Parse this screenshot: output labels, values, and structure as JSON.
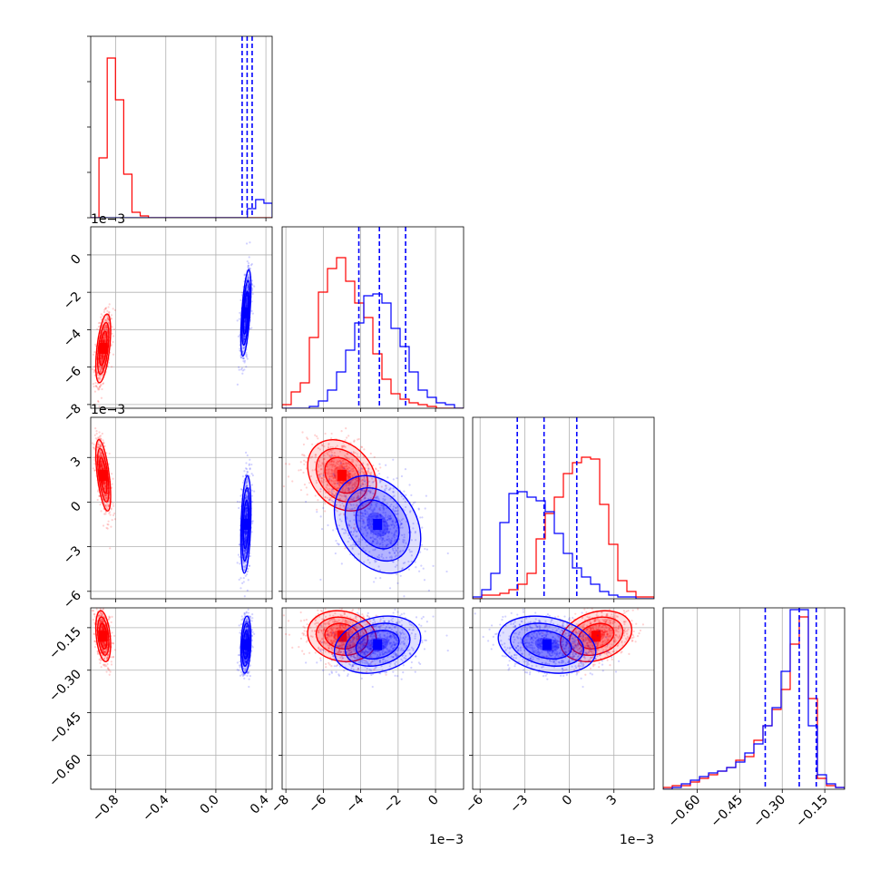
{
  "chart_data": {
    "type": "corner",
    "colors": {
      "red": "#ff0000",
      "blue": "#0000ff",
      "grid": "#b0b0b0",
      "axis": "#000000"
    },
    "params": [
      {
        "range": [
          -1.0,
          0.45
        ],
        "ticks": [
          -0.8,
          -0.4,
          0.0,
          0.4
        ],
        "tick_labels": [
          "−0.8",
          "−0.4",
          "0.0",
          "0.4"
        ],
        "offset": ""
      },
      {
        "range": [
          -0.0082,
          0.0015
        ],
        "ticks": [
          -0.008,
          -0.006,
          -0.004,
          -0.002,
          0.0
        ],
        "tick_labels": [
          "−8",
          "−6",
          "−4",
          "−2",
          "0"
        ],
        "offset": "1e−3"
      },
      {
        "range": [
          -0.0065,
          0.0057
        ],
        "ticks": [
          -0.006,
          -0.003,
          0.0,
          0.003
        ],
        "tick_labels": [
          "−6",
          "−3",
          "0",
          "3"
        ],
        "offset": "1e−3"
      },
      {
        "range": [
          -0.72,
          -0.08
        ],
        "ticks": [
          -0.6,
          -0.45,
          -0.3,
          -0.15
        ],
        "tick_labels": [
          "−0.60",
          "−0.45",
          "−0.30",
          "−0.15"
        ],
        "offset": ""
      }
    ],
    "series": [
      {
        "color": "red",
        "mean": [
          -0.9,
          -0.005,
          0.0018,
          -0.18
        ],
        "sd": [
          0.03,
          0.0009,
          0.0012,
          0.045
        ],
        "hist_shape": [
          [
            0,
            0.33,
            0.88,
            0.65,
            0.24,
            0.03,
            0.01,
            0,
            0,
            0,
            0,
            0,
            0,
            0,
            0,
            0,
            0,
            0,
            0,
            0,
            0,
            0
          ],
          [
            0.02,
            0.09,
            0.14,
            0.39,
            0.64,
            0.77,
            0.83,
            0.7,
            0.58,
            0.5,
            0.3,
            0.16,
            0.08,
            0.05,
            0.03,
            0.02,
            0.01,
            0,
            0,
            0
          ],
          [
            0,
            0.02,
            0.02,
            0.03,
            0.05,
            0.08,
            0.14,
            0.33,
            0.47,
            0.56,
            0.69,
            0.75,
            0.78,
            0.77,
            0.52,
            0.3,
            0.1,
            0.04,
            0.01,
            0.01
          ],
          [
            0.01,
            0.02,
            0.02,
            0.04,
            0.06,
            0.08,
            0.1,
            0.12,
            0.16,
            0.18,
            0.27,
            0.35,
            0.44,
            0.55,
            0.8,
            0.95,
            0.5,
            0.06,
            0.02,
            0.01
          ]
        ]
      },
      {
        "color": "blue",
        "mean": [
          0.24,
          -0.0031,
          -0.0015,
          -0.21
        ],
        "sd": [
          0.02,
          0.0012,
          0.0016,
          0.05
        ],
        "quantiles": [
          [
            0.21,
            0.25,
            0.29
          ],
          [
            -0.0041,
            -0.003,
            -0.0016
          ],
          [
            -0.0035,
            -0.0017,
            0.0005
          ],
          [
            -0.36,
            -0.24,
            -0.18
          ]
        ],
        "hist_shape": [
          [
            0,
            0,
            0,
            0,
            0,
            0,
            0,
            0,
            0,
            0,
            0,
            0,
            0,
            0,
            0,
            0,
            0,
            0,
            0,
            0.05,
            0.1,
            0.08
          ],
          [
            0,
            0,
            0,
            0.01,
            0.04,
            0.1,
            0.2,
            0.32,
            0.47,
            0.62,
            0.63,
            0.58,
            0.44,
            0.34,
            0.2,
            0.1,
            0.06,
            0.03,
            0.02,
            0
          ],
          [
            0.01,
            0.05,
            0.14,
            0.42,
            0.58,
            0.59,
            0.56,
            0.54,
            0.48,
            0.36,
            0.25,
            0.17,
            0.12,
            0.08,
            0.04,
            0.02,
            0.01,
            0.01,
            0,
            0
          ],
          [
            0,
            0.01,
            0.03,
            0.05,
            0.07,
            0.09,
            0.1,
            0.12,
            0.15,
            0.2,
            0.25,
            0.35,
            0.45,
            0.65,
            0.99,
            0.99,
            0.35,
            0.08,
            0.03,
            0.01
          ]
        ]
      }
    ]
  }
}
